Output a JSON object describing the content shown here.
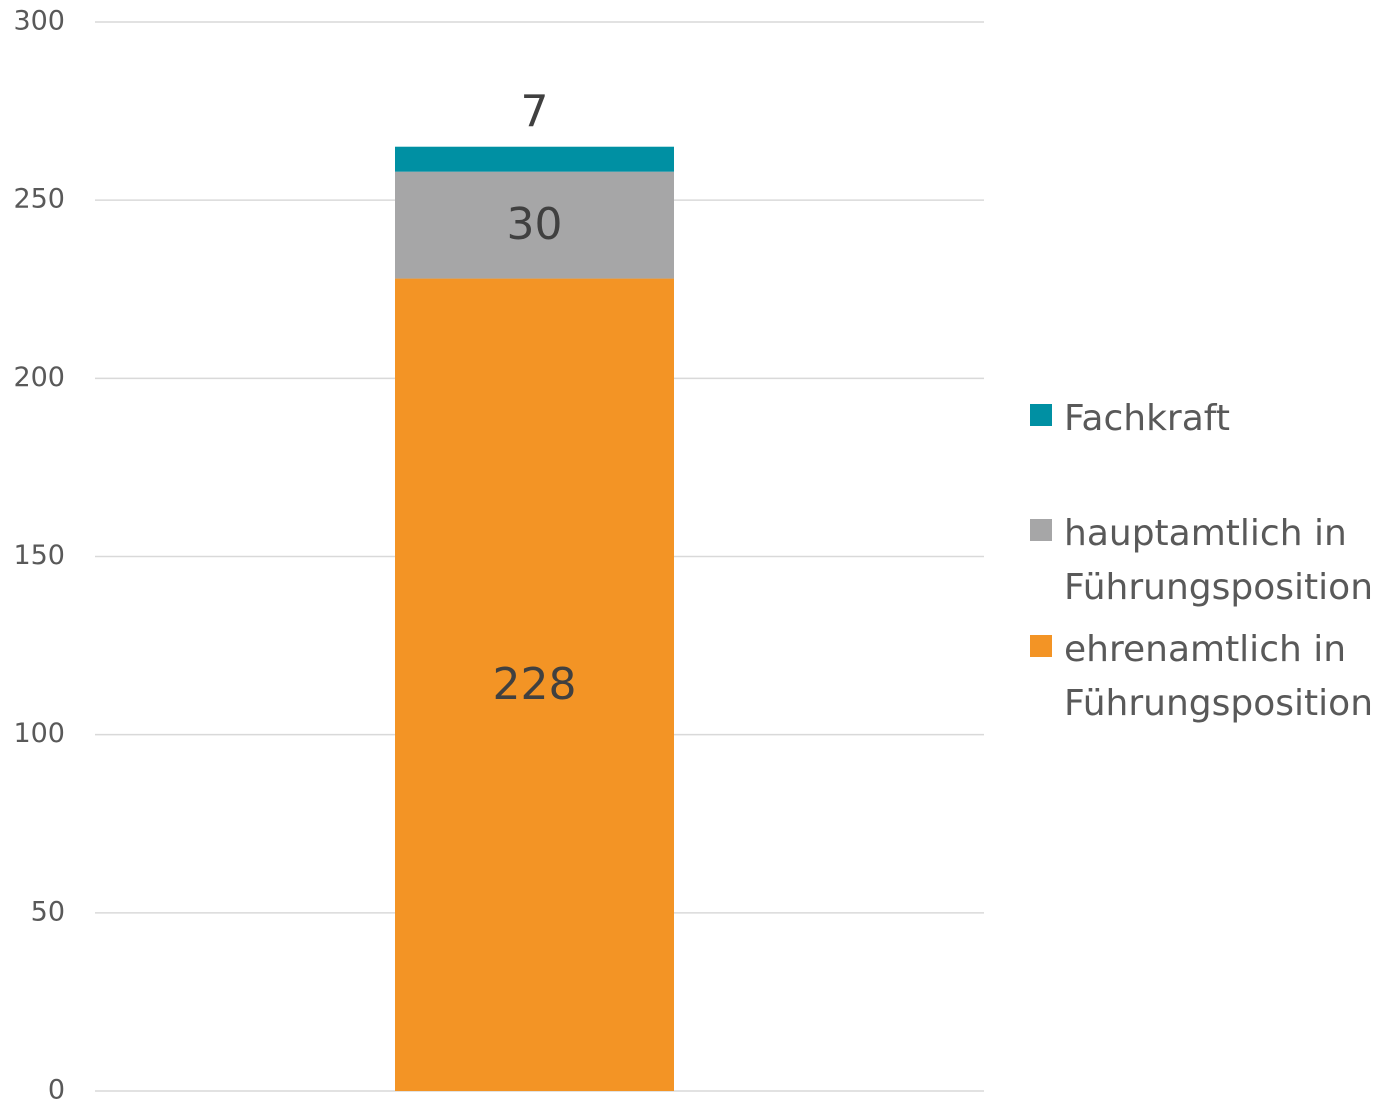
{
  "chart_data": {
    "type": "stacked_bar",
    "categories": [
      null
    ],
    "series": [
      {
        "name": "ehrenamtlich in Führungsposition",
        "color": "#f39425",
        "values": [
          228
        ]
      },
      {
        "name": "hauptamtlich in Führungsposition",
        "color": "#a6a6a7",
        "values": [
          30
        ]
      },
      {
        "name": "Fachkraft",
        "color": "#0090a3",
        "values": [
          7
        ]
      }
    ],
    "ylim": [
      0,
      300
    ],
    "yticks": [
      0,
      50,
      100,
      150,
      200,
      250,
      300
    ],
    "grid": true,
    "legend": "right"
  }
}
